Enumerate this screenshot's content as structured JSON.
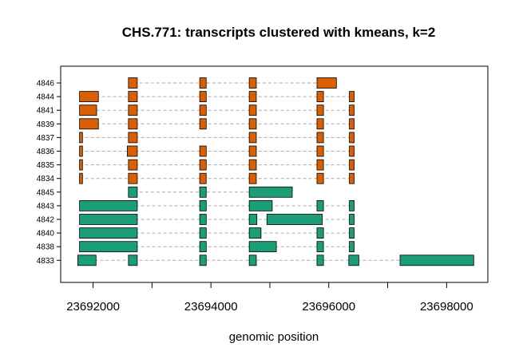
{
  "chart_data": {
    "type": "gantt",
    "title": "CHS.771: transcripts clustered with kmeans, k=2",
    "xlabel": "genomic position",
    "ylabel": "",
    "xlim": [
      23691450,
      23698700
    ],
    "x_ticks": [
      23692000,
      23693000,
      23694000,
      23695000,
      23696000,
      23697000,
      23698000
    ],
    "x_tick_labels": [
      "23692000",
      "23694000",
      "23696000",
      "23698000"
    ],
    "x_tick_labeled_values": [
      23692000,
      23694000,
      23696000,
      23698000
    ],
    "colors": {
      "cluster1": "#d95f02",
      "cluster2": "#1b9e77",
      "connector": "#aaaaaa",
      "border": "#000000"
    },
    "transcripts": [
      {
        "id": "4846",
        "cluster": 1,
        "exons": [
          [
            23692600,
            23692750
          ],
          [
            23693810,
            23693920
          ],
          [
            23694650,
            23694770
          ],
          [
            23695800,
            23696130
          ]
        ]
      },
      {
        "id": "4844",
        "cluster": 1,
        "exons": [
          [
            23691770,
            23692090
          ],
          [
            23692600,
            23692750
          ],
          [
            23693810,
            23693920
          ],
          [
            23694650,
            23694770
          ],
          [
            23695800,
            23695910
          ],
          [
            23696350,
            23696430
          ]
        ]
      },
      {
        "id": "4841",
        "cluster": 1,
        "exons": [
          [
            23691770,
            23692060
          ],
          [
            23692600,
            23692750
          ],
          [
            23693810,
            23693920
          ],
          [
            23694650,
            23694770
          ],
          [
            23695800,
            23695910
          ],
          [
            23696350,
            23696430
          ]
        ]
      },
      {
        "id": "4839",
        "cluster": 1,
        "exons": [
          [
            23691770,
            23692090
          ],
          [
            23692600,
            23692750
          ],
          [
            23693810,
            23693920
          ],
          [
            23694650,
            23694770
          ],
          [
            23695800,
            23695910
          ],
          [
            23696350,
            23696430
          ]
        ]
      },
      {
        "id": "4837",
        "cluster": 1,
        "exons": [
          [
            23691770,
            23691820
          ],
          [
            23692600,
            23692750
          ],
          [
            23694650,
            23694770
          ],
          [
            23695800,
            23695910
          ],
          [
            23696350,
            23696430
          ]
        ]
      },
      {
        "id": "4836",
        "cluster": 1,
        "exons": [
          [
            23691770,
            23691820
          ],
          [
            23692580,
            23692750
          ],
          [
            23693810,
            23693920
          ],
          [
            23694650,
            23694770
          ],
          [
            23695800,
            23695910
          ],
          [
            23696350,
            23696430
          ]
        ]
      },
      {
        "id": "4835",
        "cluster": 1,
        "exons": [
          [
            23691770,
            23691820
          ],
          [
            23692600,
            23692750
          ],
          [
            23693810,
            23693920
          ],
          [
            23694650,
            23694770
          ],
          [
            23695800,
            23695910
          ],
          [
            23696350,
            23696430
          ]
        ]
      },
      {
        "id": "4834",
        "cluster": 1,
        "exons": [
          [
            23691770,
            23691820
          ],
          [
            23692600,
            23692750
          ],
          [
            23693810,
            23693920
          ],
          [
            23694650,
            23694770
          ],
          [
            23695800,
            23695910
          ],
          [
            23696350,
            23696430
          ]
        ]
      },
      {
        "id": "4845",
        "cluster": 2,
        "exons": [
          [
            23692600,
            23692750
          ],
          [
            23693810,
            23693920
          ],
          [
            23694650,
            23695380
          ]
        ]
      },
      {
        "id": "4843",
        "cluster": 2,
        "exons": [
          [
            23691770,
            23692750
          ],
          [
            23693810,
            23693920
          ],
          [
            23694650,
            23695040
          ],
          [
            23695800,
            23695910
          ],
          [
            23696350,
            23696430
          ]
        ]
      },
      {
        "id": "4842",
        "cluster": 2,
        "exons": [
          [
            23691770,
            23692750
          ],
          [
            23693810,
            23693920
          ],
          [
            23694650,
            23694780
          ],
          [
            23694950,
            23695890
          ],
          [
            23696350,
            23696430
          ]
        ]
      },
      {
        "id": "4840",
        "cluster": 2,
        "exons": [
          [
            23691770,
            23692750
          ],
          [
            23693810,
            23693920
          ],
          [
            23694650,
            23694850
          ],
          [
            23695800,
            23695910
          ],
          [
            23696350,
            23696430
          ]
        ]
      },
      {
        "id": "4838",
        "cluster": 2,
        "exons": [
          [
            23691770,
            23692750
          ],
          [
            23693810,
            23693920
          ],
          [
            23694650,
            23695110
          ],
          [
            23695800,
            23695910
          ],
          [
            23696350,
            23696430
          ]
        ]
      },
      {
        "id": "4833",
        "cluster": 2,
        "exons": [
          [
            23691740,
            23692050
          ],
          [
            23692600,
            23692750
          ],
          [
            23693810,
            23693920
          ],
          [
            23694650,
            23694770
          ],
          [
            23695800,
            23695910
          ],
          [
            23696340,
            23696510
          ],
          [
            23697210,
            23698460
          ]
        ]
      }
    ]
  }
}
